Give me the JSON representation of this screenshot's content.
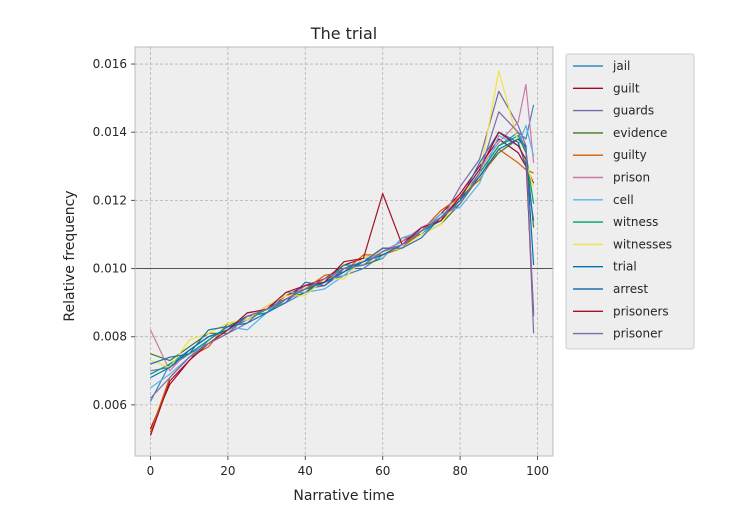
{
  "chart_data": {
    "type": "line",
    "title": "The trial",
    "xlabel": "Narrative time",
    "ylabel": "Relative frequency",
    "xlim": [
      -4,
      104
    ],
    "ylim": [
      0.0045,
      0.0165
    ],
    "xticks": [
      0,
      20,
      40,
      60,
      80,
      100
    ],
    "xtick_labels": [
      "0",
      "20",
      "40",
      "60",
      "80",
      "100"
    ],
    "yticks": [
      0.006,
      0.008,
      0.01,
      0.012,
      0.014,
      0.016
    ],
    "ytick_labels": [
      "0.006",
      "0.008",
      "0.010",
      "0.012",
      "0.014",
      "0.016"
    ],
    "reference_line": 0.01,
    "grid": true,
    "legend_position": "outside-right-top",
    "x": [
      0,
      5,
      10,
      15,
      20,
      25,
      30,
      35,
      40,
      45,
      50,
      55,
      60,
      65,
      70,
      75,
      80,
      85,
      90,
      95,
      97,
      99
    ],
    "series": [
      {
        "name": "jail",
        "color": "#348ABD",
        "values": [
          0.0061,
          0.0072,
          0.0076,
          0.008,
          0.0082,
          0.0085,
          0.0088,
          0.009,
          0.0093,
          0.0096,
          0.0098,
          0.01,
          0.0104,
          0.0107,
          0.011,
          0.0115,
          0.012,
          0.0128,
          0.0136,
          0.014,
          0.0138,
          0.0148
        ]
      },
      {
        "name": "guilt",
        "color": "#A60628",
        "values": [
          0.0053,
          0.0066,
          0.0073,
          0.0079,
          0.0083,
          0.0086,
          0.0088,
          0.0092,
          0.0095,
          0.0097,
          0.0101,
          0.0103,
          0.0105,
          0.0108,
          0.0111,
          0.0116,
          0.0122,
          0.013,
          0.0138,
          0.0134,
          0.013,
          0.0125
        ]
      },
      {
        "name": "guards",
        "color": "#7A68A6",
        "values": [
          0.007,
          0.0071,
          0.0075,
          0.0078,
          0.0081,
          0.0084,
          0.0089,
          0.0091,
          0.0094,
          0.0095,
          0.0099,
          0.0102,
          0.0106,
          0.0106,
          0.0112,
          0.0114,
          0.0124,
          0.0132,
          0.0152,
          0.0142,
          0.0136,
          0.0081
        ]
      },
      {
        "name": "evidence",
        "color": "#467821",
        "values": [
          0.0075,
          0.0073,
          0.0077,
          0.0081,
          0.0081,
          0.0086,
          0.0087,
          0.0091,
          0.0093,
          0.0097,
          0.01,
          0.0101,
          0.0103,
          0.0109,
          0.011,
          0.0113,
          0.0119,
          0.0127,
          0.0134,
          0.0138,
          0.0135,
          0.0112
        ]
      },
      {
        "name": "guilty",
        "color": "#D55E00",
        "values": [
          0.0052,
          0.0068,
          0.0074,
          0.0077,
          0.0084,
          0.0085,
          0.0089,
          0.0092,
          0.0094,
          0.0098,
          0.0099,
          0.0104,
          0.0104,
          0.0106,
          0.0111,
          0.0117,
          0.0121,
          0.0126,
          0.0135,
          0.0131,
          0.0129,
          0.0128
        ]
      },
      {
        "name": "prison",
        "color": "#CC79A7",
        "values": [
          0.0082,
          0.007,
          0.0076,
          0.008,
          0.0082,
          0.0087,
          0.0088,
          0.009,
          0.0095,
          0.0096,
          0.01,
          0.0102,
          0.0105,
          0.0108,
          0.0112,
          0.0115,
          0.0121,
          0.0129,
          0.0137,
          0.0143,
          0.0154,
          0.0131
        ]
      },
      {
        "name": "cell",
        "color": "#56B4E9",
        "values": [
          0.0065,
          0.0069,
          0.0074,
          0.0079,
          0.0083,
          0.0082,
          0.0087,
          0.0093,
          0.0093,
          0.0094,
          0.0098,
          0.0103,
          0.0103,
          0.0109,
          0.0111,
          0.0116,
          0.0118,
          0.0125,
          0.0139,
          0.0136,
          0.0142,
          0.0133
        ]
      },
      {
        "name": "witness",
        "color": "#009E73",
        "values": [
          0.0069,
          0.0072,
          0.0075,
          0.0079,
          0.0083,
          0.0086,
          0.0087,
          0.0091,
          0.0094,
          0.0096,
          0.0101,
          0.0101,
          0.0105,
          0.0107,
          0.0111,
          0.0114,
          0.012,
          0.0128,
          0.0136,
          0.0139,
          0.0134,
          0.0119
        ]
      },
      {
        "name": "witnesses",
        "color": "#F0E442",
        "values": [
          0.0073,
          0.0071,
          0.0079,
          0.0081,
          0.0084,
          0.0085,
          0.0089,
          0.0092,
          0.0092,
          0.0097,
          0.0097,
          0.0103,
          0.0105,
          0.0106,
          0.011,
          0.0113,
          0.0121,
          0.0127,
          0.0158,
          0.0137,
          0.0131,
          0.0124
        ]
      },
      {
        "name": "trial",
        "color": "#0072B2",
        "values": [
          0.0068,
          0.0071,
          0.0076,
          0.008,
          0.0082,
          0.0086,
          0.0088,
          0.0091,
          0.0094,
          0.0096,
          0.0099,
          0.0102,
          0.0104,
          0.0107,
          0.0111,
          0.0115,
          0.012,
          0.0127,
          0.0135,
          0.0138,
          0.0136,
          0.0101
        ]
      },
      {
        "name": "arrest",
        "color": "#1F6FB2",
        "values": [
          0.0072,
          0.0074,
          0.0075,
          0.0082,
          0.0083,
          0.0084,
          0.0087,
          0.009,
          0.0096,
          0.0095,
          0.01,
          0.0102,
          0.0106,
          0.0106,
          0.0109,
          0.0115,
          0.012,
          0.0131,
          0.014,
          0.0137,
          0.013,
          0.0114
        ]
      },
      {
        "name": "prisoners",
        "color": "#A50F2A",
        "values": [
          0.0051,
          0.0067,
          0.0073,
          0.0078,
          0.0082,
          0.0087,
          0.0088,
          0.0093,
          0.0095,
          0.0096,
          0.0102,
          0.0103,
          0.0122,
          0.0107,
          0.0112,
          0.0114,
          0.0121,
          0.0129,
          0.014,
          0.0136,
          0.0132,
          0.0087
        ]
      },
      {
        "name": "prisoner",
        "color": "#7E6BA8",
        "values": [
          0.0062,
          0.0068,
          0.0074,
          0.0078,
          0.0081,
          0.0086,
          0.0088,
          0.0091,
          0.0094,
          0.0097,
          0.01,
          0.0101,
          0.0105,
          0.0107,
          0.0111,
          0.0115,
          0.0119,
          0.0128,
          0.0146,
          0.014,
          0.0135,
          0.0086
        ]
      }
    ]
  }
}
